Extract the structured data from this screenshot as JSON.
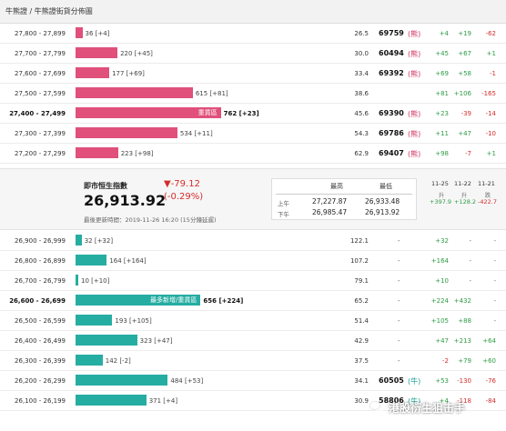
{
  "breadcrumb": "牛熊證 / 牛熊證街貨分佈圖",
  "colors": {
    "bull": "#e0507b",
    "bear": "#26ada2",
    "up": "#2e9b45",
    "down": "#d62b2b"
  },
  "rows_top": [
    {
      "range": "27,800 - 27,899",
      "qty": "36 [+4]",
      "ratio": "26.5",
      "code": "69759",
      "type": "(熊)",
      "c1": "+4",
      "c2": "+19",
      "c3": "-62"
    },
    {
      "range": "27,700 - 27,799",
      "qty": "220 [+45]",
      "ratio": "30.0",
      "code": "60494",
      "type": "(熊)",
      "c1": "+45",
      "c2": "+67",
      "c3": "+1"
    },
    {
      "range": "27,600 - 27,699",
      "qty": "177 [+69]",
      "ratio": "33.4",
      "code": "69392",
      "type": "(熊)",
      "c1": "+69",
      "c2": "+58",
      "c3": "-1"
    },
    {
      "range": "27,500 - 27,599",
      "qty": "615 [+81]",
      "ratio": "38.6",
      "code": "",
      "type": "",
      "c1": "+81",
      "c2": "+106",
      "c3": "-165"
    },
    {
      "range": "27,400 - 27,499",
      "qty": "762 [+23]",
      "bar_label": "重貨區",
      "ratio": "45.6",
      "code": "69390",
      "type": "(熊)",
      "c1": "+23",
      "c2": "-39",
      "c3": "-14"
    },
    {
      "range": "27,300 - 27,399",
      "qty": "534 [+11]",
      "ratio": "54.3",
      "code": "69786",
      "type": "(熊)",
      "c1": "+11",
      "c2": "+47",
      "c3": "-10"
    },
    {
      "range": "27,200 - 27,299",
      "qty": "223 [+98]",
      "ratio": "62.9",
      "code": "69407",
      "type": "(熊)",
      "c1": "+98",
      "c2": "-7",
      "c3": "+1"
    }
  ],
  "index": {
    "title": "即市恒生指數",
    "value": "26,913.92",
    "change": "▼-79.12",
    "change_pct": "(-0.29%)",
    "updated": "最後更新時間：2019-11-26 16:20 (15分鐘延遲)",
    "high_label": "最高",
    "low_label": "最低",
    "am_label": "上午",
    "pm_label": "下午",
    "am_high": "27,227.87",
    "am_low": "26,933.48",
    "pm_high": "26,985.47",
    "pm_low": "26,913.92"
  },
  "daily": [
    {
      "date": "11-25",
      "dir": "升",
      "val": "+397.9"
    },
    {
      "date": "11-22",
      "dir": "升",
      "val": "+128.2"
    },
    {
      "date": "11-21",
      "dir": "跌",
      "val": "-422.7"
    }
  ],
  "rows_bottom": [
    {
      "range": "26,900 - 26,999",
      "qty": "32 [+32]",
      "ratio": "122.1",
      "code": "-",
      "type": "",
      "c1": "+32",
      "c2": "-",
      "c3": "-"
    },
    {
      "range": "26,800 - 26,899",
      "qty": "164 [+164]",
      "ratio": "107.2",
      "code": "-",
      "type": "",
      "c1": "+164",
      "c2": "-",
      "c3": "-"
    },
    {
      "range": "26,700 - 26,799",
      "qty": "10 [+10]",
      "ratio": "79.1",
      "code": "-",
      "type": "",
      "c1": "+10",
      "c2": "-",
      "c3": "-"
    },
    {
      "range": "26,600 - 26,699",
      "qty": "656 [+224]",
      "bar_label": "最多新增/重貨區",
      "ratio": "65.2",
      "code": "-",
      "type": "",
      "c1": "+224",
      "c2": "+432",
      "c3": "-"
    },
    {
      "range": "26,500 - 26,599",
      "qty": "193 [+105]",
      "ratio": "51.4",
      "code": "-",
      "type": "",
      "c1": "+105",
      "c2": "+88",
      "c3": "-"
    },
    {
      "range": "26,400 - 26,499",
      "qty": "323 [+47]",
      "ratio": "42.9",
      "code": "-",
      "type": "",
      "c1": "+47",
      "c2": "+213",
      "c3": "+64"
    },
    {
      "range": "26,300 - 26,399",
      "qty": "142 [-2]",
      "ratio": "37.5",
      "code": "-",
      "type": "",
      "c1": "-2",
      "c2": "+79",
      "c3": "+60"
    },
    {
      "range": "26,200 - 26,299",
      "qty": "484 [+53]",
      "ratio": "34.1",
      "code": "60505",
      "type": "(牛)",
      "c1": "+53",
      "c2": "-130",
      "c3": "-76"
    },
    {
      "range": "26,100 - 26,199",
      "qty": "371 [+4]",
      "ratio": "30.9",
      "code": "58806",
      "type": "(牛)",
      "c1": "+4",
      "c2": "-118",
      "c3": "-84"
    }
  ],
  "watermark": "港股衍生狙击手"
}
